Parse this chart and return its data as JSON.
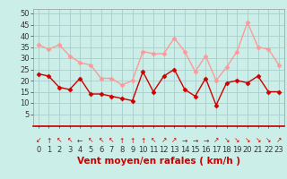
{
  "xlabel": "Vent moyen/en rafales ( km/h )",
  "background_color": "#cceee8",
  "grid_color": "#aacccc",
  "x": [
    0,
    1,
    2,
    3,
    4,
    5,
    6,
    7,
    8,
    9,
    10,
    11,
    12,
    13,
    14,
    15,
    16,
    17,
    18,
    19,
    20,
    21,
    22,
    23
  ],
  "y_mean": [
    23,
    22,
    17,
    16,
    21,
    14,
    14,
    13,
    12,
    11,
    24,
    15,
    22,
    25,
    16,
    13,
    21,
    9,
    19,
    20,
    19,
    22,
    15,
    15
  ],
  "y_gust": [
    36,
    34,
    36,
    31,
    28,
    27,
    21,
    21,
    18,
    20,
    33,
    32,
    32,
    39,
    33,
    24,
    31,
    20,
    26,
    33,
    46,
    35,
    34,
    27
  ],
  "mean_color": "#cc0000",
  "gust_color": "#ff9999",
  "ylim": [
    0,
    52
  ],
  "yticks": [
    5,
    10,
    15,
    20,
    25,
    30,
    35,
    40,
    45,
    50
  ],
  "xticks": [
    0,
    1,
    2,
    3,
    4,
    5,
    6,
    7,
    8,
    9,
    10,
    11,
    12,
    13,
    14,
    15,
    16,
    17,
    18,
    19,
    20,
    21,
    22,
    23
  ],
  "marker": "D",
  "markersize": 2.5,
  "linewidth": 1.0,
  "xlabel_color": "#cc0000",
  "xlabel_fontsize": 7.5,
  "tick_fontsize": 6,
  "wind_dirs": [
    "↙",
    "↑",
    "↖",
    "↖",
    "←",
    "↖",
    "↖",
    "↖",
    "↑",
    "↑",
    "↑",
    "↖",
    "↗",
    "↗",
    "→",
    "→",
    "→",
    "↗",
    "↘",
    "↘",
    "↘",
    "↘",
    "↘",
    "↗"
  ],
  "wind_color": "#cc0000"
}
